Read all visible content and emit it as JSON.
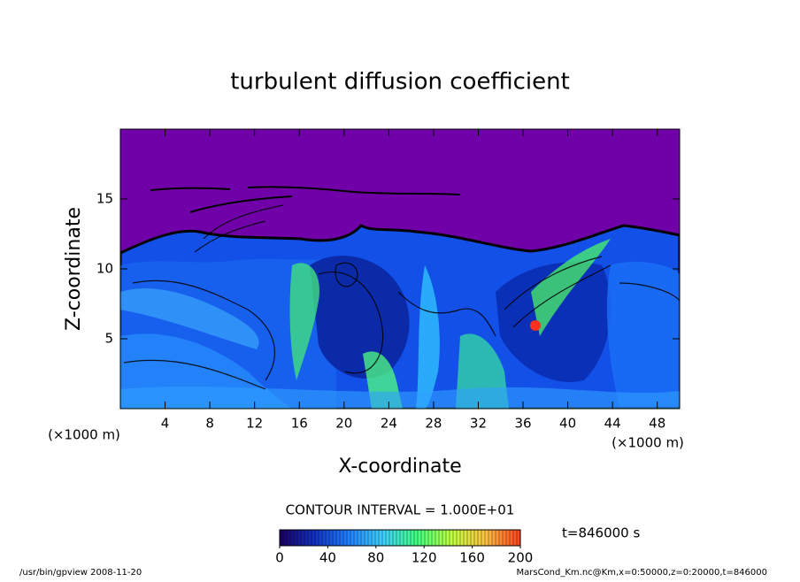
{
  "chart_data": {
    "type": "contour",
    "title": "turbulent diffusion coefficient",
    "xlabel": "X-coordinate",
    "ylabel": "Z-coordinate",
    "x_unit": "(×1000 m)",
    "xlim": [
      0,
      50
    ],
    "xticks": [
      4,
      8,
      12,
      16,
      20,
      24,
      28,
      32,
      36,
      40,
      44,
      48
    ],
    "ylim": [
      0,
      20
    ],
    "yticks": [
      5,
      10,
      15
    ],
    "contour_interval": "CONTOUR INTERVAL = 1.000E+01",
    "colorbar": {
      "lim": [
        0,
        200
      ],
      "ticks": [
        0,
        40,
        80,
        120,
        160,
        200
      ],
      "colors": [
        "#1a0060",
        "#1030c0",
        "#2080ff",
        "#40d0ff",
        "#40ff80",
        "#c0ff40",
        "#ffc040",
        "#ff4020"
      ]
    },
    "time_label": "t=846000 s",
    "footer_left": "/usr/bin/gpview   2008-11-20",
    "footer_right": "MarsCond_Km.nc@Km,x=0:50000,z=0:20000,t=846000"
  }
}
